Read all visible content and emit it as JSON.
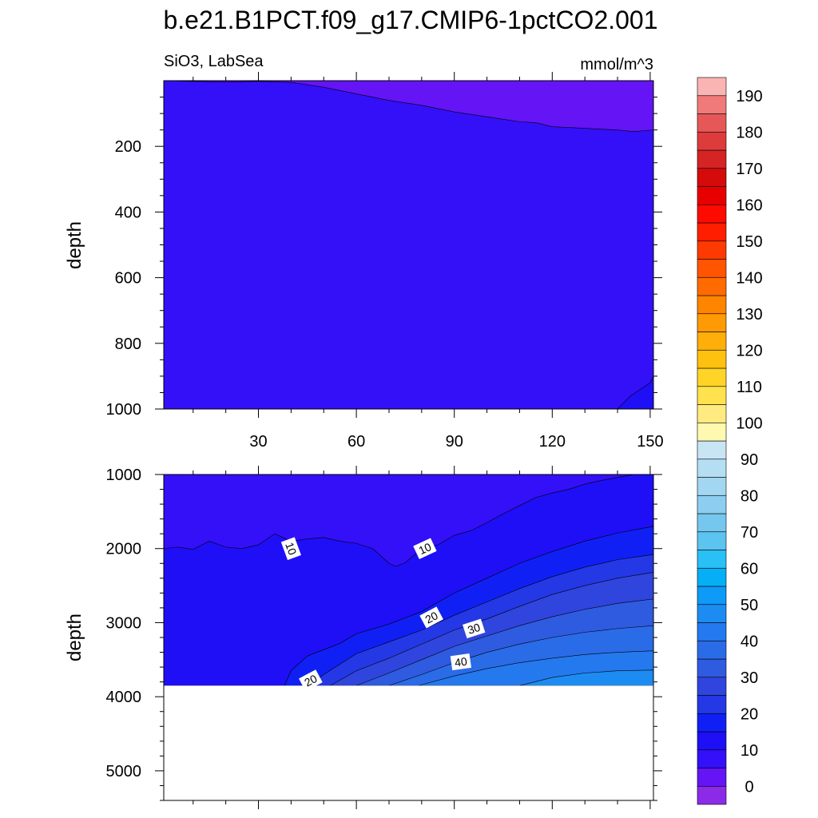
{
  "chart_data": [
    {
      "type": "heatmap",
      "panel": "upper",
      "title": "b.e21.B1PCT.f09_g17.CMIP6-1pctCO2.001",
      "left_string": "SiO3, LabSea",
      "right_string": "mmol/m^3",
      "xlabel": "",
      "ylabel": "depth",
      "xlim": [
        1,
        151
      ],
      "ylim": [
        0,
        1000
      ],
      "y_inverted": true,
      "x_ticks": [
        30,
        60,
        90,
        120,
        150
      ],
      "y_ticks": [
        200,
        400,
        600,
        800,
        1000
      ],
      "contour_levels": [
        0,
        5
      ],
      "fields": [
        {
          "band": "0-5",
          "color": "#6414F5",
          "lower_boundary": {
            "x": [
              1,
              10,
              20,
              30,
              40,
              50,
              55,
              60,
              70,
              80,
              90,
              100,
              110,
              115,
              120,
              130,
              140,
              145,
              151
            ],
            "depth": [
              0,
              2,
              4,
              2,
              5,
              20,
              30,
              40,
              60,
              75,
              95,
              110,
              125,
              128,
              140,
              145,
              150,
              155,
              150
            ]
          }
        },
        {
          "band": "5-10",
          "color": "#3310F7",
          "lower_boundary": {
            "x": [
              140,
              144,
              147,
              150,
              151
            ],
            "depth": [
              1000,
              960,
              940,
              920,
              900
            ]
          }
        },
        {
          "band": "10-15",
          "color": "#1E0FF6",
          "region": "bottom-right corner below 900"
        }
      ],
      "grid": false
    },
    {
      "type": "heatmap",
      "panel": "lower",
      "xlabel": "",
      "ylabel": "depth",
      "xlim": [
        1,
        151
      ],
      "ylim": [
        1000,
        5400
      ],
      "y_inverted": true,
      "bathymetry_depth": 3850,
      "y_ticks": [
        1000,
        2000,
        3000,
        4000,
        5000
      ],
      "contour_levels": [
        5,
        10,
        15,
        20,
        25,
        30,
        35,
        40,
        45
      ],
      "contour_labels": [
        {
          "text": "10",
          "x": 40,
          "depth": 2000
        },
        {
          "text": "10",
          "x": 81,
          "depth": 2000
        },
        {
          "text": "20",
          "x": 83,
          "depth": 2930
        },
        {
          "text": "30",
          "x": 96,
          "depth": 3080
        },
        {
          "text": "40",
          "x": 92,
          "depth": 3530
        },
        {
          "text": "20",
          "x": 46,
          "depth": 3780
        }
      ],
      "fields": [
        {
          "band": "5-10",
          "color": "#3310F7",
          "region": "above 10 contour"
        },
        {
          "band": "10-15",
          "color": "#1E0FF6",
          "upper_boundary": {
            "x": [
              1,
              5,
              10,
              15,
              20,
              25,
              30,
              35,
              40,
              45,
              50,
              55,
              60,
              65,
              70,
              72,
              75,
              80,
              85,
              90,
              95,
              100,
              105,
              110,
              115,
              120,
              125,
              130,
              135,
              140,
              145,
              151
            ],
            "depth": [
              2000,
              1980,
              2010,
              1900,
              1980,
              2000,
              1950,
              1800,
              1900,
              1870,
              1850,
              1900,
              1930,
              2000,
              2200,
              2240,
              2190,
              2000,
              1950,
              1820,
              1760,
              1650,
              1530,
              1420,
              1310,
              1250,
              1200,
              1130,
              1080,
              1040,
              1000,
              1000
            ]
          }
        },
        {
          "band": "15-20",
          "color": "#1020F5",
          "upper_boundary": {
            "x": [
              38,
              40,
              45,
              55,
              60,
              70,
              80,
              90,
              100,
              110,
              120,
              130,
              140,
              151
            ],
            "depth": [
              3850,
              3650,
              3450,
              3280,
              3150,
              3020,
              2850,
              2600,
              2400,
              2200,
              2040,
              1900,
              1790,
              1700
            ]
          }
        },
        {
          "band": "20-25",
          "color": "#2438E6",
          "upper_boundary": {
            "x": [
              45,
              50,
              55,
              60,
              70,
              80,
              90,
              100,
              110,
              120,
              130,
              140,
              151
            ],
            "depth": [
              3850,
              3700,
              3560,
              3420,
              3260,
              3100,
              2900,
              2720,
              2540,
              2380,
              2250,
              2150,
              2080
            ]
          }
        },
        {
          "band": "25-30",
          "color": "#3045DD",
          "upper_boundary": {
            "x": [
              52,
              60,
              70,
              80,
              90,
              100,
              110,
              120,
              130,
              140,
              151
            ],
            "depth": [
              3850,
              3650,
              3480,
              3290,
              3100,
              2950,
              2780,
              2620,
              2500,
              2400,
              2320
            ]
          }
        },
        {
          "band": "30-35",
          "color": "#2F5BE0",
          "upper_boundary": {
            "x": [
              60,
              70,
              80,
              90,
              100,
              110,
              120,
              130,
              140,
              151
            ],
            "depth": [
              3850,
              3680,
              3500,
              3320,
              3180,
              3040,
              2920,
              2820,
              2740,
              2680
            ]
          }
        },
        {
          "band": "35-40",
          "color": "#2A6CE8",
          "upper_boundary": {
            "x": [
              70,
              80,
              90,
              100,
              110,
              120,
              130,
              140,
              151
            ],
            "depth": [
              3850,
              3700,
              3540,
              3400,
              3290,
              3200,
              3130,
              3080,
              3040
            ]
          }
        },
        {
          "band": "40-45",
          "color": "#2479EE",
          "upper_boundary": {
            "x": [
              79,
              90,
              100,
              110,
              120,
              130,
              140,
              151
            ],
            "depth": [
              3850,
              3720,
              3620,
              3540,
              3480,
              3430,
              3400,
              3380
            ]
          }
        },
        {
          "band": "45-50",
          "color": "#1C8CF2",
          "upper_boundary": {
            "x": [
              110,
              120,
              130,
              140,
              151
            ],
            "depth": [
              3850,
              3740,
              3680,
              3650,
              3640
            ]
          }
        }
      ],
      "grid": false
    }
  ],
  "colorbar": {
    "labels": [
      "0",
      "10",
      "20",
      "30",
      "40",
      "50",
      "60",
      "70",
      "80",
      "90",
      "100",
      "110",
      "120",
      "130",
      "140",
      "150",
      "160",
      "170",
      "180",
      "190"
    ],
    "colors": [
      "#8B2BE8",
      "#6414F5",
      "#3310F7",
      "#1E0FF6",
      "#1020F5",
      "#2438E6",
      "#3045DD",
      "#2F5BE0",
      "#2A6CE8",
      "#2479EE",
      "#1C8CF2",
      "#0D9AF8",
      "#06AEF5",
      "#29C0F6",
      "#5BC4F0",
      "#75C7EE",
      "#8DCEF0",
      "#A2D6F1",
      "#B5DEF3",
      "#C8E5F4",
      "#FFF8B0",
      "#FFEB80",
      "#FFE24D",
      "#FFD426",
      "#FFC10F",
      "#FFAE0A",
      "#FF9A05",
      "#FF8400",
      "#FF6B00",
      "#FF5500",
      "#FF3A00",
      "#FF1F00",
      "#FF0A00",
      "#E80000",
      "#D50A0A",
      "#D42424",
      "#DE3C3C",
      "#E65858",
      "#F07A7A",
      "#FAB4B4"
    ]
  }
}
